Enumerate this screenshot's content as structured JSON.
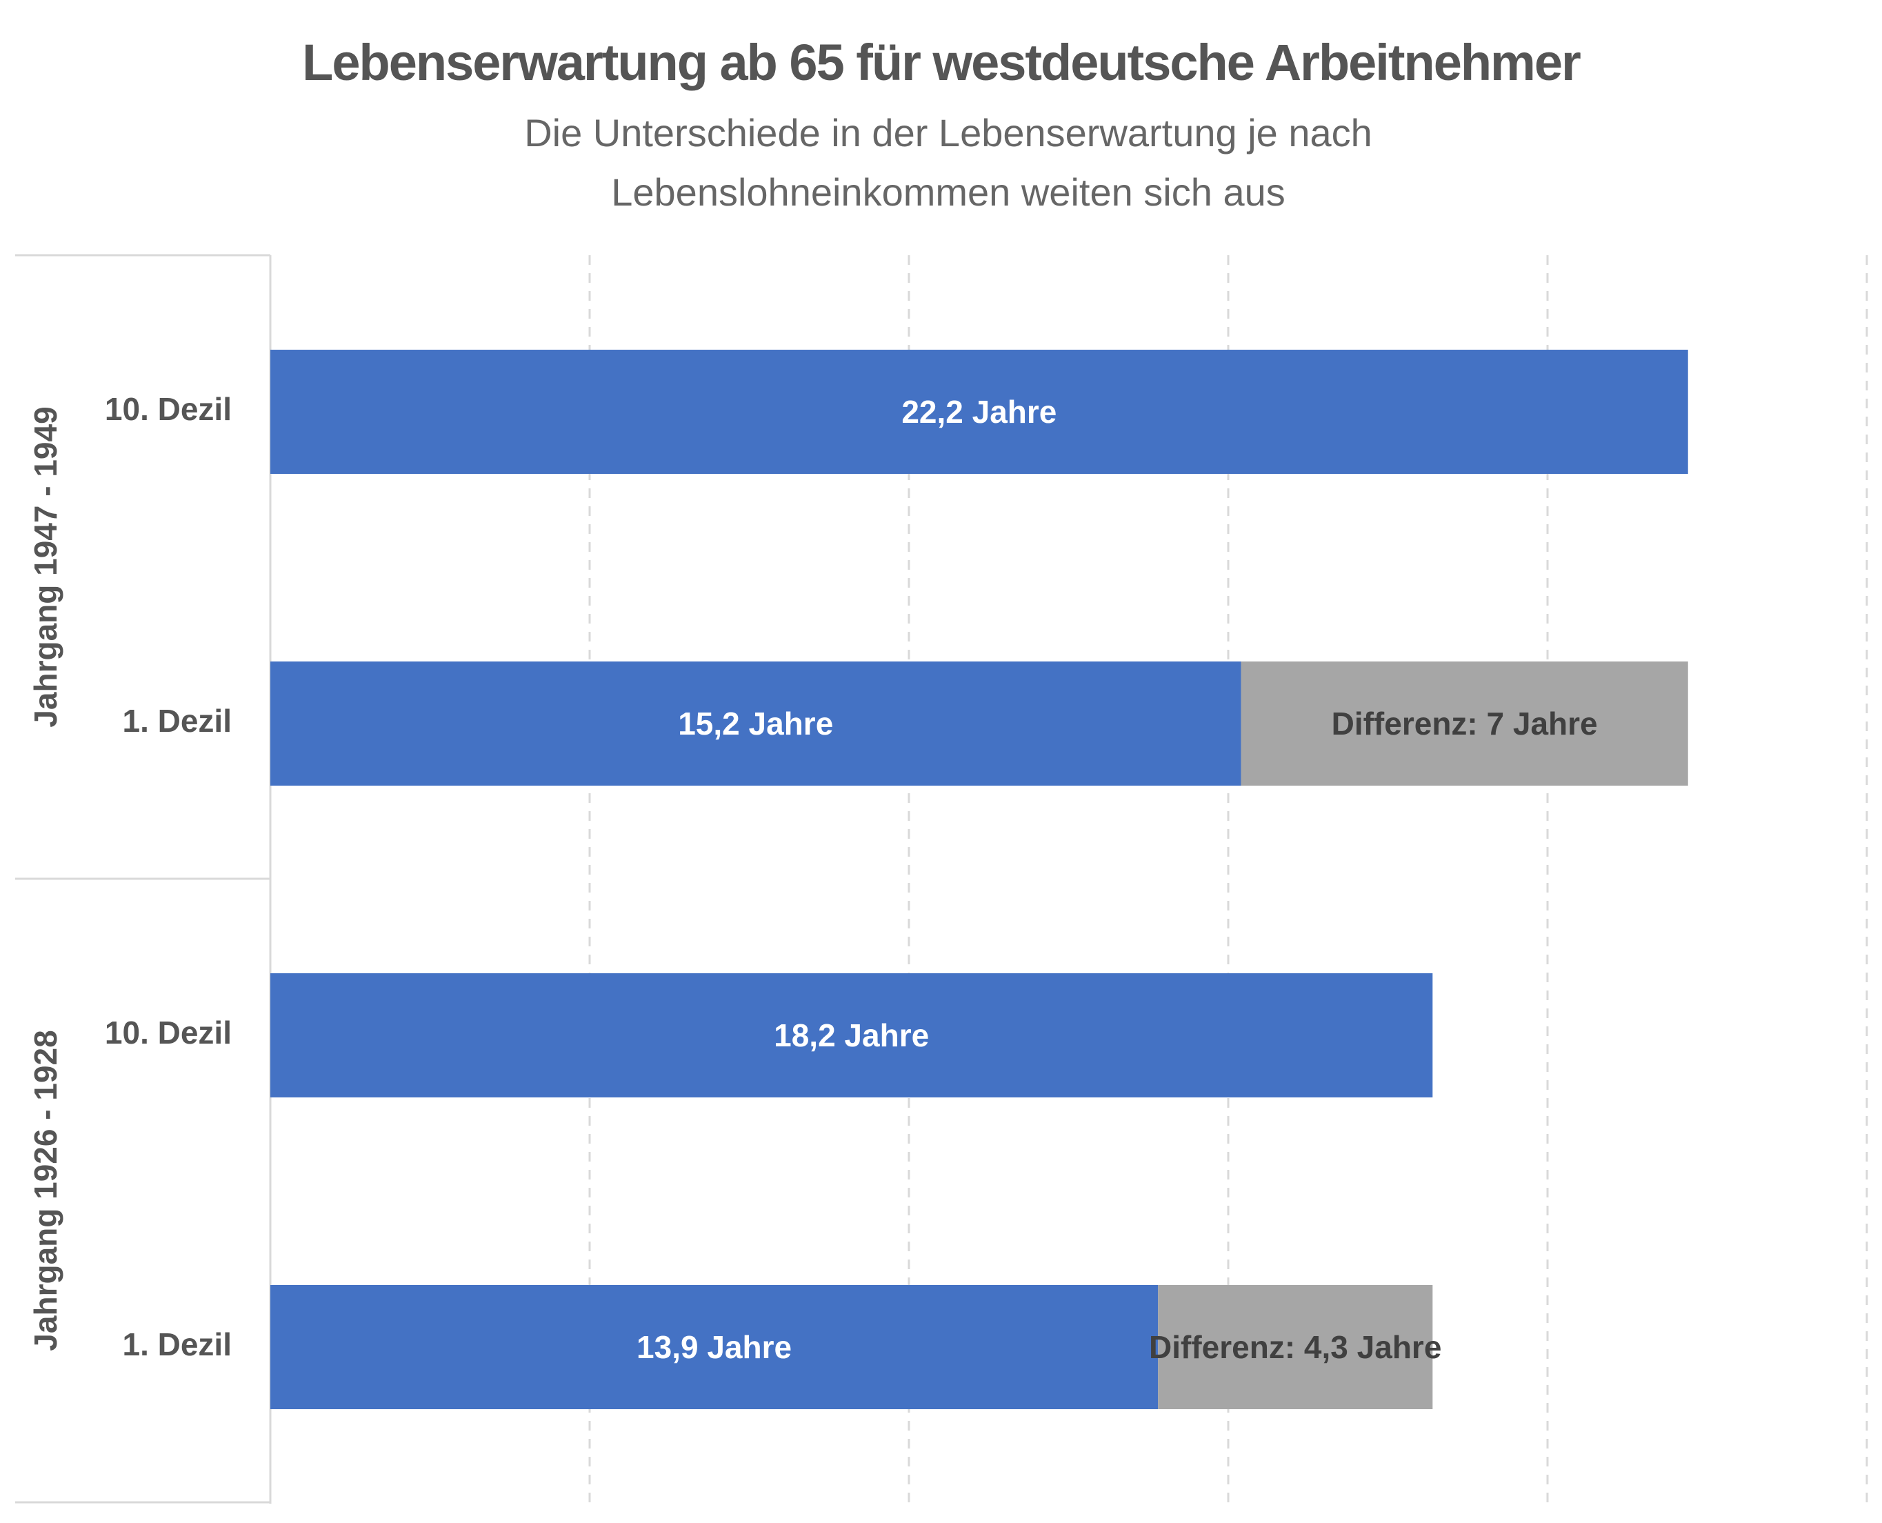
{
  "title": "Lebenserwartung ab 65 für westdeutsche Arbeitnehmer",
  "subtitle": "Die Unterschiede in der Lebenserwartung je nach Lebenslohneinkommen weiten sich aus",
  "colors": {
    "bar": "#4472C4",
    "diff": "#A6A6A6",
    "text": "#555555",
    "grid": "#D9D9D9"
  },
  "chart_data": {
    "type": "bar",
    "orientation": "horizontal",
    "stacked": true,
    "groups": [
      {
        "label": "Jahrgang 1947 - 1949",
        "bars": [
          {
            "category": "10. Dezil",
            "value": 22.2,
            "label": "22,2 Jahre",
            "difference": null,
            "difference_label": ""
          },
          {
            "category": "1. Dezil",
            "value": 15.2,
            "label": "15,2 Jahre",
            "difference": 7,
            "difference_label": "Differenz: 7 Jahre"
          }
        ]
      },
      {
        "label": "Jahrgang 1926 - 1928",
        "bars": [
          {
            "category": "10. Dezil",
            "value": 18.2,
            "label": "18,2 Jahre",
            "difference": null,
            "difference_label": ""
          },
          {
            "category": "1. Dezil",
            "value": 13.9,
            "label": "13,9 Jahre",
            "difference": 4.3,
            "difference_label": "Differenz: 4,3 Jahre"
          }
        ]
      }
    ],
    "xlim": [
      0,
      25
    ],
    "xgrid_step": 5,
    "grid": true,
    "xtick_labels_shown": false
  }
}
